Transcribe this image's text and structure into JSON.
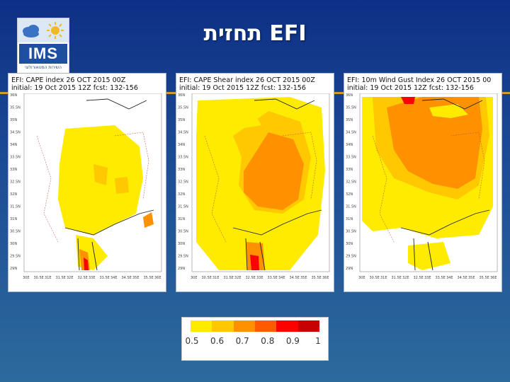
{
  "slide": {
    "title": "תחזית EFI",
    "logo": {
      "word": "IMS",
      "subtitle": "השירות המטאורולוגי"
    }
  },
  "maps": [
    {
      "line1": "EFI: CAPE index 26 OCT 2015 00Z",
      "line2": "initial: 19 Oct 2015 12Z   fcst: 132-156"
    },
    {
      "line1": "EFI: CAPE Shear index 26 OCT 2015 00Z",
      "line2": "initial: 19 Oct 2015 12Z   fcst: 132-156"
    },
    {
      "line1": "EFI: 10m Wind Gust Index 26 OCT 2015 00",
      "line2": "initial: 19 Oct 2015 12Z   fcst: 132-156"
    }
  ],
  "lat_ticks": [
    "36N",
    "35.5N",
    "35N",
    "34.5N",
    "34N",
    "33.5N",
    "33N",
    "32.5N",
    "32N",
    "31.5N",
    "31N",
    "30.5N",
    "30N",
    "29.5N",
    "29N"
  ],
  "lon_ticks": [
    "30E",
    "30.5E",
    "31E",
    "31.5E",
    "32E",
    "32.5E",
    "33E",
    "33.5E",
    "34E",
    "34.5E",
    "35E",
    "35.5E",
    "36E"
  ],
  "colorbar": {
    "labels": [
      "0.5",
      "0.6",
      "0.7",
      "0.8",
      "0.9",
      "1"
    ],
    "colors": [
      "#ffeb00",
      "#ffc800",
      "#ff9100",
      "#ff5a00",
      "#ff0000",
      "#c80000"
    ]
  }
}
